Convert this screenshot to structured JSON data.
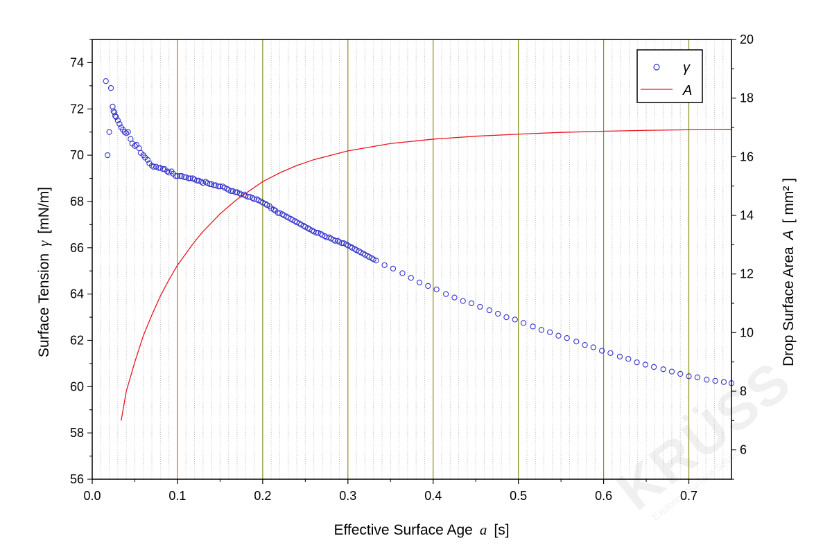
{
  "chart_data": {
    "type": "scatter",
    "title": "",
    "xlabel": "Effective Surface Age",
    "xlabel_symbol": "a",
    "xlabel_unit": "[s]",
    "ylabel": "Surface Tension",
    "ylabel_symbol": "γ",
    "ylabel_unit": "[mN/m]",
    "y2label": "Drop Surface Area",
    "y2label_symbol": "A",
    "y2label_unit": "[ mm² ]",
    "xlim": [
      0.0,
      0.75
    ],
    "ylim": [
      56,
      75
    ],
    "y2lim": [
      5,
      20
    ],
    "xticks": [
      0.0,
      0.1,
      0.2,
      0.3,
      0.4,
      0.5,
      0.6,
      0.7
    ],
    "xtick_labels": [
      "0.0",
      "0.1",
      "0.2",
      "0.3",
      "0.4",
      "0.5",
      "0.6",
      "0.7"
    ],
    "yticks": [
      56,
      58,
      60,
      62,
      64,
      66,
      68,
      70,
      72,
      74
    ],
    "ytick_labels": [
      "56",
      "58",
      "60",
      "62",
      "64",
      "66",
      "68",
      "70",
      "72",
      "74"
    ],
    "y2ticks": [
      6,
      8,
      10,
      12,
      14,
      16,
      18,
      20
    ],
    "y2tick_labels": [
      "6",
      "8",
      "10",
      "12",
      "14",
      "16",
      "18",
      "20"
    ],
    "grid": true,
    "legend_position": "top-right",
    "colors": {
      "gamma": "#3333cc",
      "area": "#e8141e",
      "major_grid": "#8b8b1a",
      "minor_grid": "#bdbdbd"
    },
    "series": [
      {
        "name": "γ",
        "type": "scatter",
        "axis": "left",
        "x": [
          0.016,
          0.018,
          0.02,
          0.022,
          0.024,
          0.025,
          0.026,
          0.027,
          0.028,
          0.03,
          0.032,
          0.034,
          0.036,
          0.038,
          0.04,
          0.042,
          0.045,
          0.047,
          0.05,
          0.052,
          0.055,
          0.057,
          0.06,
          0.062,
          0.065,
          0.067,
          0.07,
          0.072,
          0.075,
          0.078,
          0.08,
          0.083,
          0.085,
          0.088,
          0.09,
          0.093,
          0.095,
          0.098,
          0.1,
          0.103,
          0.105,
          0.108,
          0.11,
          0.113,
          0.115,
          0.118,
          0.12,
          0.123,
          0.125,
          0.128,
          0.13,
          0.133,
          0.135,
          0.138,
          0.14,
          0.143,
          0.145,
          0.148,
          0.15,
          0.153,
          0.155,
          0.158,
          0.16,
          0.163,
          0.165,
          0.168,
          0.17,
          0.173,
          0.175,
          0.178,
          0.18,
          0.183,
          0.185,
          0.188,
          0.19,
          0.193,
          0.195,
          0.198,
          0.2,
          0.203,
          0.205,
          0.208,
          0.21,
          0.213,
          0.215,
          0.218,
          0.22,
          0.223,
          0.225,
          0.228,
          0.23,
          0.233,
          0.235,
          0.238,
          0.24,
          0.243,
          0.245,
          0.248,
          0.25,
          0.253,
          0.255,
          0.258,
          0.26,
          0.263,
          0.265,
          0.268,
          0.27,
          0.273,
          0.275,
          0.278,
          0.28,
          0.283,
          0.285,
          0.288,
          0.29,
          0.293,
          0.295,
          0.298,
          0.3,
          0.303,
          0.305,
          0.308,
          0.31,
          0.313,
          0.315,
          0.318,
          0.32,
          0.323,
          0.325,
          0.328,
          0.33,
          0.333,
          0.343,
          0.353,
          0.364,
          0.374,
          0.384,
          0.394,
          0.404,
          0.415,
          0.425,
          0.435,
          0.445,
          0.455,
          0.466,
          0.476,
          0.486,
          0.496,
          0.506,
          0.517,
          0.527,
          0.537,
          0.547,
          0.557,
          0.568,
          0.578,
          0.588,
          0.598,
          0.608,
          0.619,
          0.629,
          0.639,
          0.649,
          0.659,
          0.67,
          0.68,
          0.69,
          0.7,
          0.71,
          0.721,
          0.731,
          0.741,
          0.75
        ],
        "y": [
          73.2,
          70.0,
          71.0,
          72.9,
          72.1,
          71.9,
          71.85,
          71.7,
          71.65,
          71.5,
          71.35,
          71.2,
          71.1,
          71.0,
          70.95,
          71.0,
          70.7,
          70.5,
          70.4,
          70.45,
          70.3,
          70.1,
          70.0,
          69.9,
          69.8,
          69.65,
          69.55,
          69.5,
          69.5,
          69.45,
          69.45,
          69.4,
          69.4,
          69.3,
          69.25,
          69.3,
          69.2,
          69.1,
          69.1,
          69.1,
          69.1,
          69.05,
          69.05,
          69.0,
          69.0,
          69.0,
          68.95,
          68.9,
          68.9,
          68.85,
          68.8,
          68.85,
          68.8,
          68.75,
          68.75,
          68.7,
          68.7,
          68.65,
          68.65,
          68.65,
          68.6,
          68.55,
          68.5,
          68.45,
          68.45,
          68.4,
          68.4,
          68.35,
          68.3,
          68.3,
          68.25,
          68.2,
          68.2,
          68.15,
          68.1,
          68.1,
          68.05,
          68.0,
          67.95,
          67.9,
          67.85,
          67.8,
          67.7,
          67.65,
          67.6,
          67.5,
          67.5,
          67.45,
          67.4,
          67.35,
          67.3,
          67.25,
          67.2,
          67.15,
          67.1,
          67.05,
          67.0,
          66.95,
          66.9,
          66.85,
          66.8,
          66.75,
          66.7,
          66.65,
          66.65,
          66.6,
          66.55,
          66.5,
          66.45,
          66.45,
          66.4,
          66.35,
          66.3,
          66.3,
          66.25,
          66.2,
          66.2,
          66.15,
          66.1,
          66.05,
          66.0,
          65.95,
          65.9,
          65.85,
          65.8,
          65.75,
          65.7,
          65.65,
          65.6,
          65.55,
          65.5,
          65.45,
          65.25,
          65.1,
          64.9,
          64.7,
          64.5,
          64.35,
          64.2,
          64.0,
          63.85,
          63.7,
          63.6,
          63.45,
          63.3,
          63.15,
          63.0,
          62.9,
          62.75,
          62.6,
          62.45,
          62.35,
          62.2,
          62.1,
          61.95,
          61.8,
          61.7,
          61.55,
          61.45,
          61.3,
          61.2,
          61.05,
          60.95,
          60.85,
          60.75,
          60.65,
          60.55,
          60.45,
          60.4,
          60.3,
          60.25,
          60.2,
          60.15
        ]
      },
      {
        "name": "A",
        "type": "line",
        "axis": "right",
        "x": [
          0.034,
          0.04,
          0.05,
          0.06,
          0.07,
          0.08,
          0.09,
          0.1,
          0.11,
          0.12,
          0.13,
          0.14,
          0.15,
          0.16,
          0.17,
          0.18,
          0.19,
          0.2,
          0.22,
          0.24,
          0.26,
          0.28,
          0.3,
          0.32,
          0.35,
          0.4,
          0.45,
          0.5,
          0.55,
          0.6,
          0.65,
          0.7,
          0.75
        ],
        "y": [
          7.0,
          8.0,
          9.0,
          9.9,
          10.6,
          11.25,
          11.8,
          12.3,
          12.7,
          13.1,
          13.45,
          13.75,
          14.05,
          14.3,
          14.55,
          14.75,
          14.95,
          15.15,
          15.45,
          15.7,
          15.9,
          16.05,
          16.2,
          16.3,
          16.45,
          16.6,
          16.7,
          16.77,
          16.83,
          16.87,
          16.9,
          16.92,
          16.93
        ]
      }
    ]
  },
  "watermark": {
    "text": "KRÜSS",
    "tagline": "Exploring Surface Solutions"
  }
}
